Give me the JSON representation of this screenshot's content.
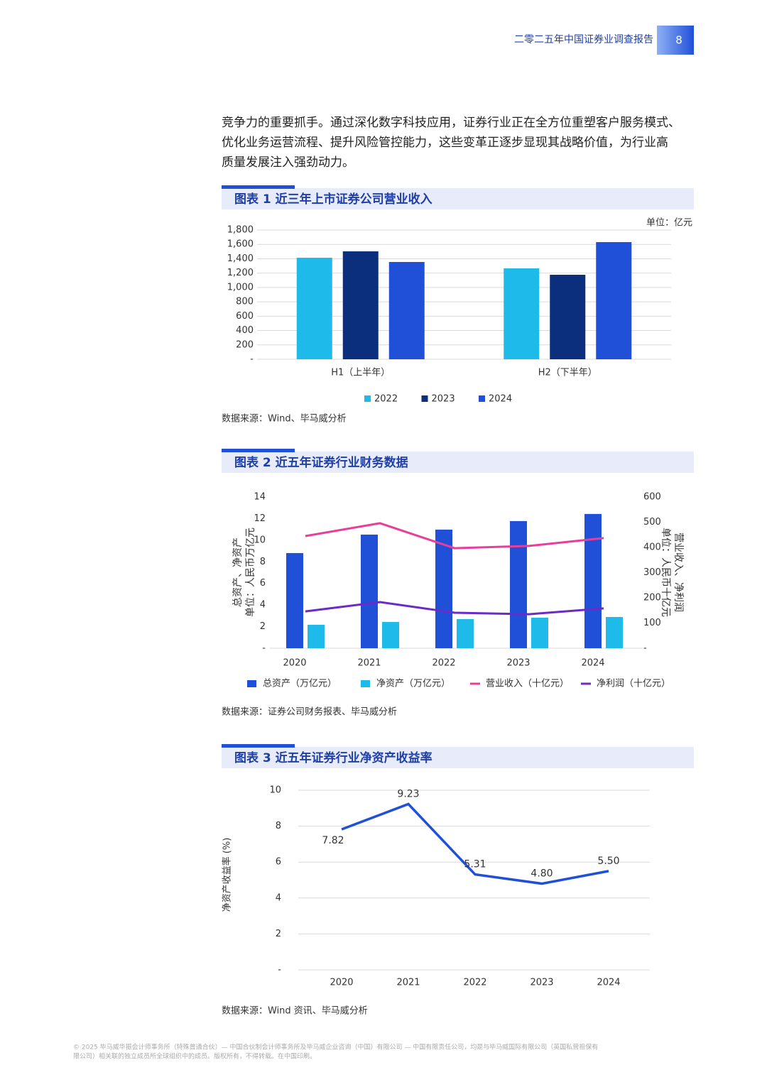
{
  "header": {
    "title": "二零二五年中国证券业调查报告",
    "page": "8"
  },
  "body": [
    "竞争力的重要抓手。通过深化数字科技应用，证券行业正在全方位重塑客户服务模式、",
    "优化业务运营流程、提升风险管控能力，这些变革正逐步显现其战略价值，为行业高",
    "质量发展注入强劲动力。"
  ],
  "chart_data": [
    {
      "type": "bar",
      "title": "图表 1 近三年上市证券公司营业收入",
      "unit": "单位：亿元",
      "source": "数据来源：Wind、毕马威分析",
      "categories": [
        "H1（上半年）",
        "H2（下半年）"
      ],
      "series": [
        {
          "name": "2022",
          "color": "#1ebbea",
          "values": [
            1414,
            1266
          ]
        },
        {
          "name": "2023",
          "color": "#0c2f7d",
          "values": [
            1503,
            1177
          ]
        },
        {
          "name": "2024",
          "color": "#2150d8",
          "values": [
            1355,
            1632
          ]
        }
      ],
      "ylim": [
        0,
        1800
      ],
      "yticks": [
        {
          "value": 0,
          "label": "-"
        },
        200,
        400,
        600,
        800,
        {
          "value": 1000,
          "label": "1,000"
        },
        {
          "value": 1200,
          "label": "1,200"
        },
        {
          "value": 1400,
          "label": "1,400"
        },
        {
          "value": 1600,
          "label": "1,600"
        },
        {
          "value": 1800,
          "label": "1,800"
        }
      ],
      "grid": true
    },
    {
      "type": "combo",
      "title": "图表 2 近五年证券行业财务数据",
      "source": "数据来源：证券公司财务报表、毕马威分析",
      "ylabel": [
        "总资产、净资产",
        "单位：人民币万亿元"
      ],
      "y2label": [
        "营业收入、净利润",
        "单位：人民币十亿元"
      ],
      "categories": [
        "2020",
        "2021",
        "2022",
        "2023",
        "2024"
      ],
      "series": [
        {
          "name": "总资产（万亿元）",
          "kind": "bar",
          "color": "#2150d8",
          "values": [
            8.81,
            10.52,
            10.98,
            11.77,
            12.43
          ]
        },
        {
          "name": "净资产（万亿元）",
          "kind": "bar",
          "color": "#1ebbea",
          "values": [
            2.17,
            2.43,
            2.7,
            2.83,
            2.89
          ]
        },
        {
          "name": "营业收入（十亿元）",
          "kind": "line",
          "axis": "y2",
          "color": "#e83e9b",
          "values": [
            445,
            496,
            397,
            406,
            437
          ]
        },
        {
          "name": "净利润（十亿元）",
          "kind": "line",
          "axis": "y2",
          "color": "#6a2bc8",
          "values": [
            146,
            183,
            141,
            135,
            158
          ]
        }
      ],
      "ylim": [
        0,
        14
      ],
      "yticks": [
        {
          "value": 0,
          "label": "-"
        },
        2,
        4,
        6,
        8,
        10,
        12,
        14
      ],
      "y2lim": [
        0,
        600
      ],
      "y2ticks": [
        {
          "value": 0,
          "label": "-"
        },
        100,
        200,
        300,
        400,
        500,
        600
      ],
      "grid": false
    },
    {
      "type": "line",
      "title": "图表 3 近五年证券行业净资产收益率",
      "source": "数据来源：Wind 资讯、毕马威分析",
      "ylabel": "净资产收益率 (%)",
      "categories": [
        "2020",
        "2021",
        "2022",
        "2023",
        "2024"
      ],
      "values": [
        7.82,
        9.23,
        5.31,
        4.8,
        5.5
      ],
      "value_labels": [
        "7.82",
        "9.23",
        "5.31",
        "4.80",
        "5.50"
      ],
      "color": "#2150d8",
      "ylim": [
        0,
        10
      ],
      "yticks": [
        {
          "value": 0,
          "label": "-"
        },
        2,
        4,
        6,
        8,
        10
      ],
      "grid": true
    }
  ],
  "footer": [
    "© 2025 毕马威华振会计师事务所（特殊普通合伙）— 中国合伙制会计师事务所及毕马威企业咨询（中国）有限公司 — 中国有限责任公司，均是与毕马威国际有限公司（英国私营担保有",
    "限公司）相关联的独立成员所全球组织中的成员。版权所有，不得转载。在中国印刷。"
  ]
}
